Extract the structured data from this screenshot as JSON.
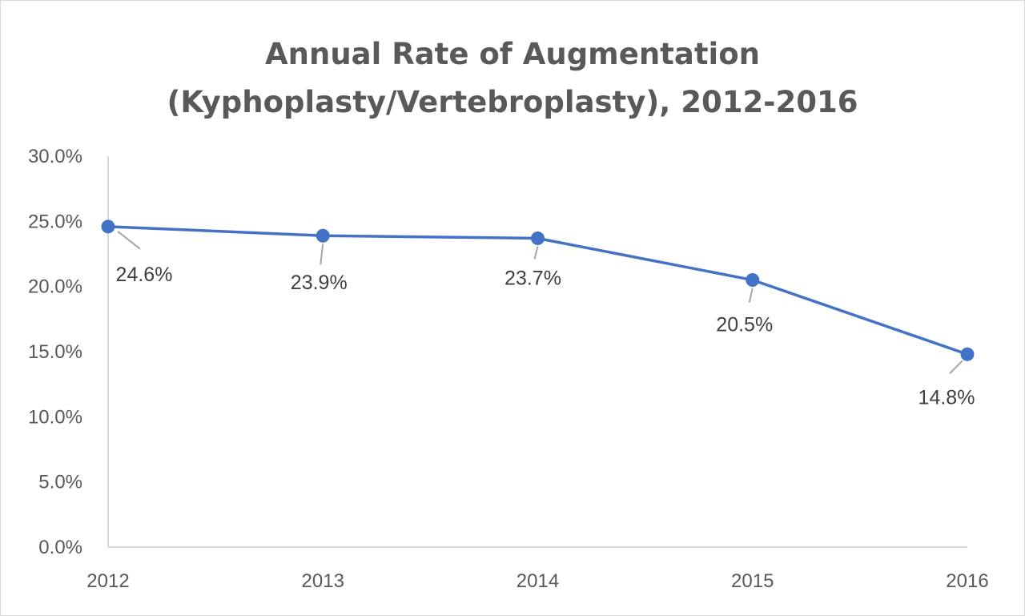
{
  "chart_data": {
    "type": "line",
    "title_lines": [
      "Annual Rate of Augmentation",
      "(Kyphoplasty/Vertebroplasty), 2012-2016"
    ],
    "xlabel": "",
    "ylabel": "",
    "categories": [
      "2012",
      "2013",
      "2014",
      "2015",
      "2016"
    ],
    "series": [
      {
        "values": [
          24.6,
          23.9,
          23.7,
          20.5,
          14.8
        ],
        "labels": [
          "24.6%",
          "23.9%",
          "23.7%",
          "20.5%",
          "14.8%"
        ],
        "color": "#4472c4"
      }
    ],
    "ylim": [
      0,
      30
    ],
    "yticks": [
      0,
      5,
      10,
      15,
      20,
      25,
      30
    ],
    "ytick_labels": [
      "0.0%",
      "5.0%",
      "10.0%",
      "15.0%",
      "20.0%",
      "25.0%",
      "30.0%"
    ],
    "grid": false,
    "legend": "none"
  }
}
